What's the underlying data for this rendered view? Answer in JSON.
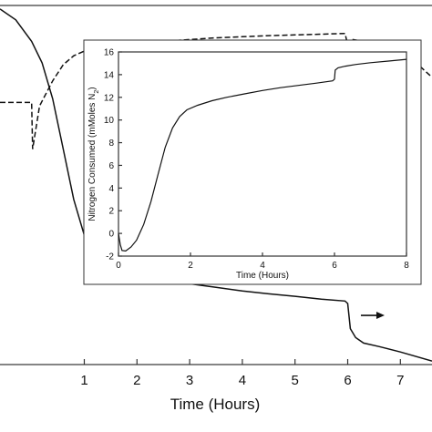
{
  "chart_data": [
    {
      "type": "line",
      "title": "",
      "xlabel": "Time (Hours)",
      "ylabel": "",
      "xlim": [
        -0.6,
        7.6
      ],
      "ylim": [
        0,
        1
      ],
      "x_ticks": [
        1,
        2,
        3,
        4,
        5,
        6,
        7
      ],
      "y_ticks": [],
      "grid": false,
      "legend": "none",
      "series": [
        {
          "style": "solid",
          "points": [
            [
              -0.6,
              0.99
            ],
            [
              -0.3,
              0.96
            ],
            [
              0.0,
              0.9
            ],
            [
              0.2,
              0.84
            ],
            [
              0.4,
              0.74
            ],
            [
              0.6,
              0.6
            ],
            [
              0.8,
              0.46
            ],
            [
              1.0,
              0.36
            ],
            [
              1.2,
              0.3
            ],
            [
              1.4,
              0.28
            ],
            [
              1.6,
              0.27
            ],
            [
              1.8,
              0.26
            ],
            [
              2.0,
              0.25
            ],
            [
              2.5,
              0.235
            ],
            [
              3.0,
              0.225
            ],
            [
              3.5,
              0.215
            ],
            [
              4.0,
              0.205
            ],
            [
              4.5,
              0.197
            ],
            [
              5.0,
              0.19
            ],
            [
              5.5,
              0.182
            ],
            [
              5.95,
              0.177
            ],
            [
              6.0,
              0.17
            ],
            [
              6.05,
              0.1
            ],
            [
              6.15,
              0.075
            ],
            [
              6.3,
              0.06
            ],
            [
              6.6,
              0.05
            ],
            [
              7.0,
              0.035
            ],
            [
              7.6,
              0.01
            ]
          ]
        },
        {
          "style": "dashed",
          "points": [
            [
              -0.6,
              0.73
            ],
            [
              0.0,
              0.73
            ],
            [
              0.02,
              0.6
            ],
            [
              0.15,
              0.72
            ],
            [
              0.4,
              0.79
            ],
            [
              0.6,
              0.835
            ],
            [
              0.8,
              0.86
            ],
            [
              1.0,
              0.873
            ],
            [
              1.2,
              0.882
            ],
            [
              1.5,
              0.888
            ],
            [
              2.0,
              0.895
            ],
            [
              2.5,
              0.9
            ],
            [
              3.0,
              0.905
            ],
            [
              3.5,
              0.91
            ],
            [
              4.0,
              0.913
            ],
            [
              4.5,
              0.916
            ],
            [
              5.0,
              0.918
            ],
            [
              5.5,
              0.92
            ],
            [
              5.95,
              0.922
            ],
            [
              6.0,
              0.89
            ],
            [
              6.1,
              0.905
            ],
            [
              6.3,
              0.9
            ],
            [
              6.6,
              0.89
            ],
            [
              7.0,
              0.87
            ],
            [
              7.3,
              0.84
            ],
            [
              7.6,
              0.8
            ]
          ]
        }
      ],
      "annotations": [
        {
          "type": "arrow",
          "direction": "right",
          "x": [
            6.25,
            6.7
          ],
          "y": 0.137
        }
      ]
    },
    {
      "type": "line",
      "title": "",
      "xlabel": "Time (Hours)",
      "ylabel": "Nitrogen Consumed (mMoles N",
      "ylabel_sub": "2",
      "ylabel_end": ")",
      "xlim": [
        0,
        8
      ],
      "ylim": [
        -2,
        16
      ],
      "x_ticks": [
        0,
        2,
        4,
        6,
        8
      ],
      "y_ticks": [
        -2,
        0,
        2,
        4,
        6,
        8,
        10,
        12,
        14,
        16
      ],
      "grid": false,
      "legend": "none",
      "series": [
        {
          "style": "solid",
          "points": [
            [
              0.0,
              0.0
            ],
            [
              0.05,
              -1.0
            ],
            [
              0.1,
              -1.5
            ],
            [
              0.2,
              -1.55
            ],
            [
              0.35,
              -1.2
            ],
            [
              0.5,
              -0.6
            ],
            [
              0.7,
              0.8
            ],
            [
              0.9,
              2.8
            ],
            [
              1.1,
              5.2
            ],
            [
              1.3,
              7.6
            ],
            [
              1.5,
              9.3
            ],
            [
              1.7,
              10.3
            ],
            [
              1.9,
              10.9
            ],
            [
              2.2,
              11.3
            ],
            [
              2.6,
              11.7
            ],
            [
              3.0,
              12.0
            ],
            [
              3.5,
              12.3
            ],
            [
              4.0,
              12.6
            ],
            [
              4.5,
              12.85
            ],
            [
              5.0,
              13.05
            ],
            [
              5.5,
              13.25
            ],
            [
              5.95,
              13.45
            ],
            [
              6.0,
              13.6
            ],
            [
              6.02,
              14.4
            ],
            [
              6.1,
              14.6
            ],
            [
              6.3,
              14.75
            ],
            [
              6.6,
              14.9
            ],
            [
              7.0,
              15.05
            ],
            [
              7.5,
              15.2
            ],
            [
              8.0,
              15.35
            ]
          ]
        }
      ]
    }
  ]
}
